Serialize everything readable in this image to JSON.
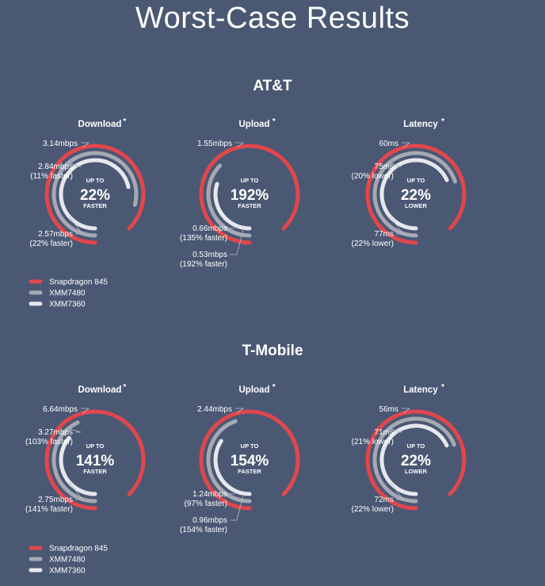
{
  "title": "Worst-Case Results",
  "colors": {
    "background": "#4a5874",
    "snapdragon": "#e0474c",
    "xmm7480": "#a4a9b4",
    "xmm7360": "#e6e8ee",
    "text": "#ffffff",
    "leader": "#b8bcc6"
  },
  "legend": [
    "Snapdragon 845",
    "XMM7480",
    "XMM7360"
  ],
  "chart_data": [
    {
      "type": "radial-bar",
      "carrier": "AT&T",
      "charts": [
        {
          "metric": "Download",
          "up_to": "UP TO",
          "headline": "22%",
          "direction": "FASTER",
          "series": [
            {
              "name": "Snapdragon 845",
              "value": 3.14,
              "label": "3.14mbps",
              "note": ""
            },
            {
              "name": "XMM7480",
              "value": 2.84,
              "label": "2.84mbps",
              "note": "(11% faster)"
            },
            {
              "name": "XMM7360",
              "value": 2.57,
              "label": "2.57mbps",
              "note": "(22% faster)"
            }
          ]
        },
        {
          "metric": "Upload",
          "up_to": "UP TO",
          "headline": "192%",
          "direction": "FASTER",
          "series": [
            {
              "name": "Snapdragon 845",
              "value": 1.55,
              "label": "1.55mbps",
              "note": ""
            },
            {
              "name": "XMM7480",
              "value": 0.66,
              "label": "0.66mbps",
              "note": "(135% faster)"
            },
            {
              "name": "XMM7360",
              "value": 0.53,
              "label": "0.53mbps",
              "note": "(192% faster)"
            }
          ]
        },
        {
          "metric": "Latency",
          "up_to": "UP TO",
          "headline": "22%",
          "direction": "LOWER",
          "series": [
            {
              "name": "Snapdragon 845",
              "value": 60,
              "label": "60ms",
              "note": ""
            },
            {
              "name": "XMM7480",
              "value": 75,
              "label": "75ms",
              "note": "(20% lower)"
            },
            {
              "name": "XMM7360",
              "value": 77,
              "label": "77ms",
              "note": "(22% lower)"
            }
          ]
        }
      ]
    },
    {
      "type": "radial-bar",
      "carrier": "T-Mobile",
      "charts": [
        {
          "metric": "Download",
          "up_to": "UP TO",
          "headline": "141%",
          "direction": "FASTER",
          "series": [
            {
              "name": "Snapdragon 845",
              "value": 6.64,
              "label": "6.64mbps",
              "note": ""
            },
            {
              "name": "XMM7480",
              "value": 3.27,
              "label": "3.27mbps",
              "note": "(103% faster)"
            },
            {
              "name": "XMM7360",
              "value": 2.75,
              "label": "2.75mbps",
              "note": "(141% faster)"
            }
          ]
        },
        {
          "metric": "Upload",
          "up_to": "UP TO",
          "headline": "154%",
          "direction": "FASTER",
          "series": [
            {
              "name": "Snapdragon 845",
              "value": 2.44,
              "label": "2.44mbps",
              "note": ""
            },
            {
              "name": "XMM7480",
              "value": 1.24,
              "label": "1.24mbps",
              "note": "(97% faster)"
            },
            {
              "name": "XMM7360",
              "value": 0.96,
              "label": "0.96mbps",
              "note": "(154% faster)"
            }
          ]
        },
        {
          "metric": "Latency",
          "up_to": "UP TO",
          "headline": "22%",
          "direction": "LOWER",
          "series": [
            {
              "name": "Snapdragon 845",
              "value": 56,
              "label": "56ms",
              "note": ""
            },
            {
              "name": "XMM7480",
              "value": 71,
              "label": "71ms",
              "note": "(21% lower)"
            },
            {
              "name": "XMM7360",
              "value": 72,
              "label": "72ms",
              "note": "(22% lower)"
            }
          ]
        }
      ]
    }
  ]
}
